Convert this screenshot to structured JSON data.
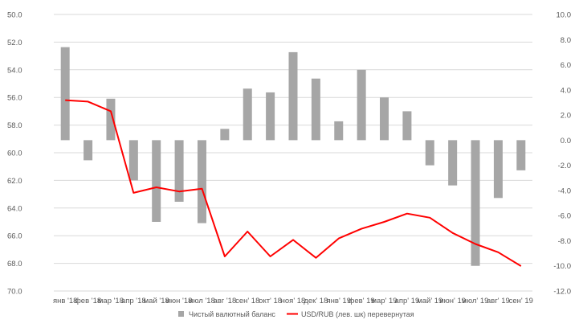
{
  "chart_data": {
    "type": "bar+line",
    "categories": [
      "янв '18",
      "фев '18",
      "мар '18",
      "апр '18",
      "май '18",
      "июн '18",
      "июл '18",
      "авг '18",
      "сен' 18",
      "окт' 18",
      "ноя' 18",
      "дек' 18",
      "янв' 19",
      "фев' 19",
      "мар' 19",
      "апр' 19",
      "май' 19",
      "июн' 19",
      "июл' 19",
      "авг' 19",
      "сен' 19"
    ],
    "series": [
      {
        "name": "Чистый валютный баланс",
        "type": "bar",
        "axis": "right",
        "color": "#a6a6a6",
        "values": [
          7.4,
          -1.6,
          3.3,
          -3.2,
          -6.5,
          -4.9,
          -6.6,
          0.9,
          4.1,
          3.8,
          7.0,
          4.9,
          1.5,
          5.6,
          3.4,
          2.3,
          -2.0,
          -3.6,
          -10.0,
          -4.6,
          -2.4
        ]
      },
      {
        "name": "USD/RUB (лев. шк) перевернутая",
        "type": "line",
        "axis": "left",
        "color": "#ff0000",
        "values": [
          56.2,
          56.3,
          57.0,
          62.9,
          62.5,
          62.8,
          62.6,
          67.5,
          65.7,
          67.5,
          66.3,
          67.6,
          66.2,
          65.5,
          65.0,
          64.4,
          64.7,
          65.8,
          66.6,
          67.2,
          68.2
        ]
      }
    ],
    "y_left": {
      "ylim": [
        70.0,
        50.0
      ],
      "inverted": true,
      "ticks": [
        "50.0",
        "52.0",
        "54.0",
        "56.0",
        "58.0",
        "60.0",
        "62.0",
        "64.0",
        "66.0",
        "68.0",
        "70.0"
      ]
    },
    "y_right": {
      "ylim": [
        -12.0,
        10.0
      ],
      "ticks": [
        "10.0",
        "8.0",
        "6.0",
        "4.0",
        "2.0",
        "0.0",
        "-2.0",
        "-4.0",
        "-6.0",
        "-8.0",
        "-10.0",
        "-12.0"
      ]
    },
    "grid": true,
    "grid_color": "#d9d9d9",
    "legend_position": "bottom"
  }
}
